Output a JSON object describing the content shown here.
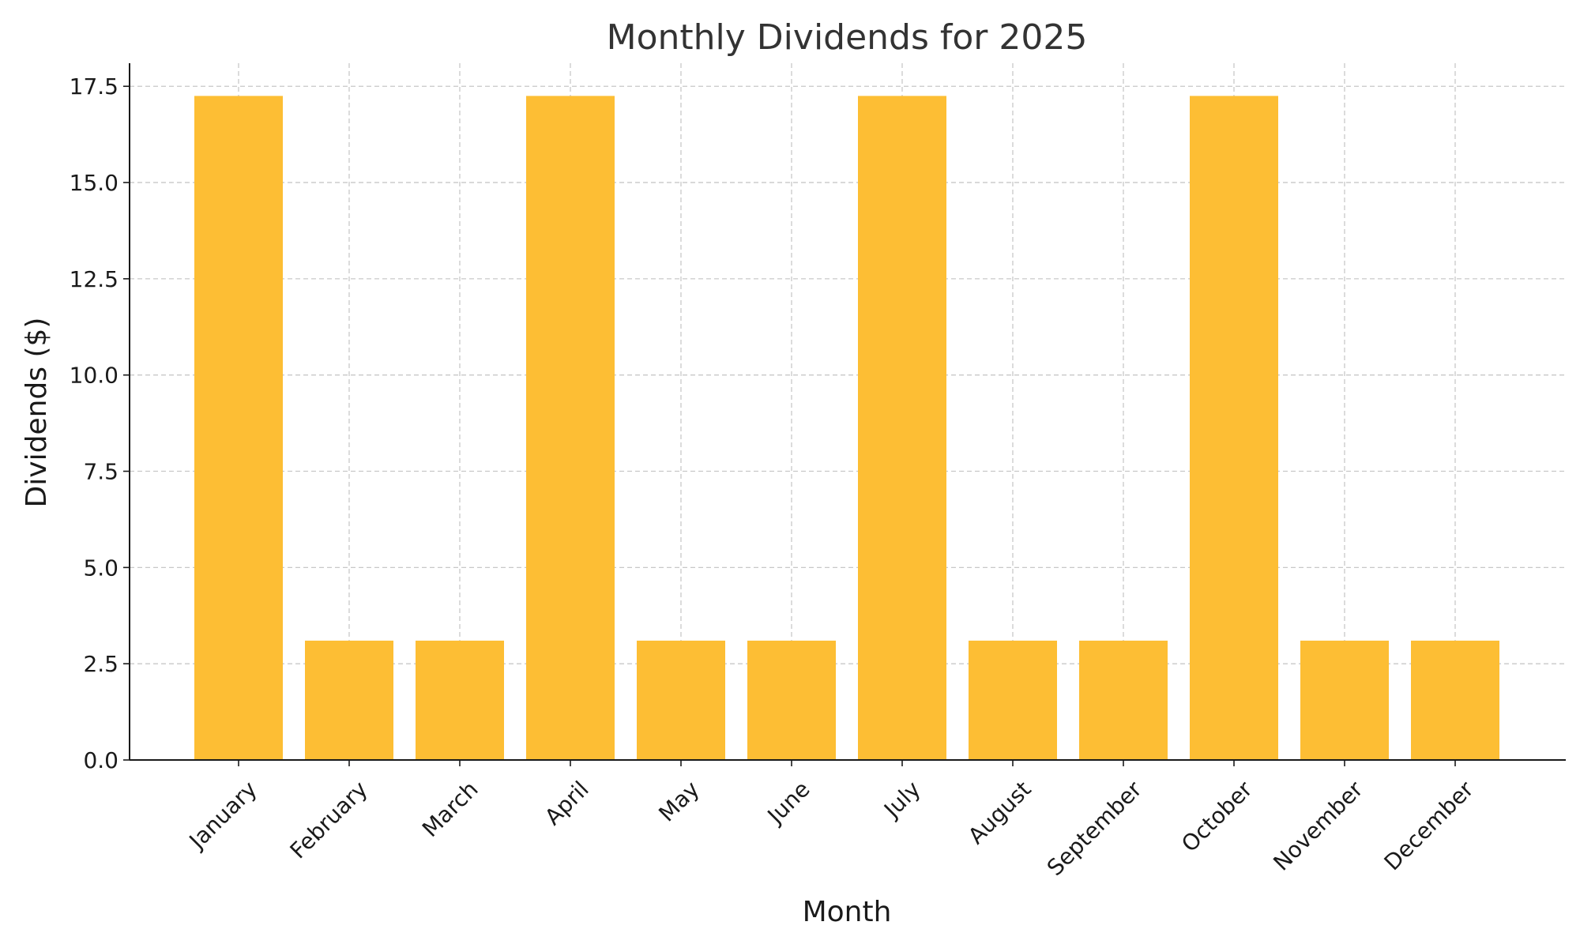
{
  "chart_data": {
    "type": "bar",
    "title": "Monthly Dividends for 2025",
    "xlabel": "Month",
    "ylabel": "Dividends ($)",
    "categories": [
      "January",
      "February",
      "March",
      "April",
      "May",
      "June",
      "July",
      "August",
      "September",
      "October",
      "November",
      "December"
    ],
    "values": [
      17.25,
      3.1,
      3.1,
      17.25,
      3.1,
      3.1,
      17.25,
      3.1,
      3.1,
      17.25,
      3.1,
      3.1
    ],
    "ylim": [
      0,
      18.1
    ],
    "yticks": [
      "0.0",
      "2.5",
      "5.0",
      "7.5",
      "10.0",
      "12.5",
      "15.0",
      "17.5"
    ],
    "grid": true,
    "bar_color": "#fdbe34",
    "legend": "none"
  }
}
